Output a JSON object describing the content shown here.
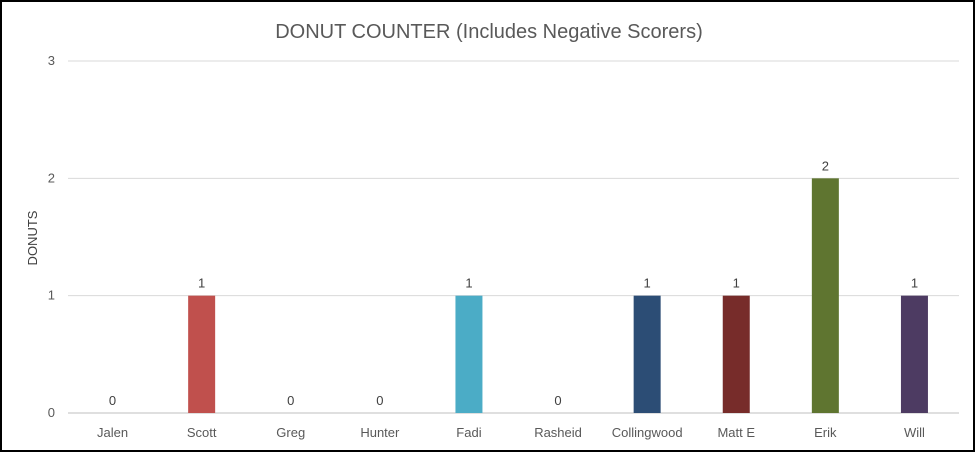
{
  "chart_data": {
    "type": "bar",
    "title": "DONUT COUNTER (Includes Negative Scorers)",
    "xlabel": "",
    "ylabel": "DONUTS",
    "ylim": [
      0,
      3
    ],
    "yticks": [
      "0",
      "1",
      "2",
      "3"
    ],
    "grid": true,
    "legend": "none",
    "categories": [
      "Jalen",
      "Scott",
      "Greg",
      "Hunter",
      "Fadi",
      "Rasheid",
      "Collingwood",
      "Matt E",
      "Erik",
      "Will"
    ],
    "values": [
      0,
      1,
      0,
      0,
      1,
      0,
      1,
      1,
      2,
      1
    ],
    "data_labels": [
      "0",
      "1",
      "0",
      "0",
      "1",
      "0",
      "1",
      "1",
      "2",
      "1"
    ],
    "colors": [
      "#4f81bd",
      "#c0504d",
      "#9bbb59",
      "#8064a2",
      "#4bacc6",
      "#f79646",
      "#2c4d75",
      "#772c2a",
      "#5f7530",
      "#4d3b62"
    ]
  }
}
